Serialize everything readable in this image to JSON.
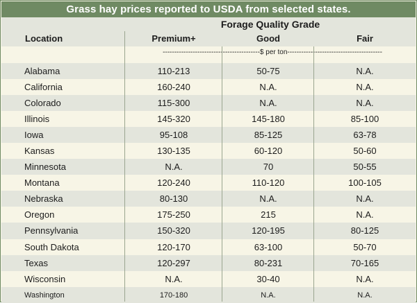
{
  "table": {
    "title": "Grass hay prices reported to USDA from selected states.",
    "group_header": "Forage Quality Grade",
    "columns": [
      "Location",
      "Premium+",
      "Good",
      "Fair"
    ],
    "unit_label": "------------------------------------------$ per ton-----------------------------------------",
    "rows": [
      {
        "location": "Alabama",
        "premium": "110-213",
        "good": "50-75",
        "fair": "N.A."
      },
      {
        "location": "California",
        "premium": "160-240",
        "good": "N.A.",
        "fair": "N.A."
      },
      {
        "location": "Colorado",
        "premium": "115-300",
        "good": "N.A.",
        "fair": "N.A."
      },
      {
        "location": "Illinois",
        "premium": "145-320",
        "good": "145-180",
        "fair": "85-100"
      },
      {
        "location": "Iowa",
        "premium": "95-108",
        "good": "85-125",
        "fair": "63-78"
      },
      {
        "location": "Kansas",
        "premium": "130-135",
        "good": "60-120",
        "fair": "50-60"
      },
      {
        "location": "Minnesota",
        "premium": "N.A.",
        "good": "70",
        "fair": "50-55"
      },
      {
        "location": "Montana",
        "premium": "120-240",
        "good": "110-120",
        "fair": "100-105"
      },
      {
        "location": "Nebraska",
        "premium": "80-130",
        "good": "N.A.",
        "fair": "N.A."
      },
      {
        "location": "Oregon",
        "premium": "175-250",
        "good": "215",
        "fair": "N.A."
      },
      {
        "location": "Pennsylvania",
        "premium": "150-320",
        "good": "120-195",
        "fair": "80-125"
      },
      {
        "location": "South Dakota",
        "premium": "120-170",
        "good": "63-100",
        "fair": "50-70"
      },
      {
        "location": "Texas",
        "premium": "120-297",
        "good": "80-231",
        "fair": "70-165"
      },
      {
        "location": "Wisconsin",
        "premium": "N.A.",
        "good": "30-40",
        "fair": "N.A."
      },
      {
        "location": "Washington",
        "premium": "170-180",
        "good": "N.A.",
        "fair": "N.A."
      }
    ]
  },
  "colors": {
    "title_bg": "#6f8a63",
    "band_dark": "#e3e5dc",
    "band_light": "#f7f5e6"
  }
}
